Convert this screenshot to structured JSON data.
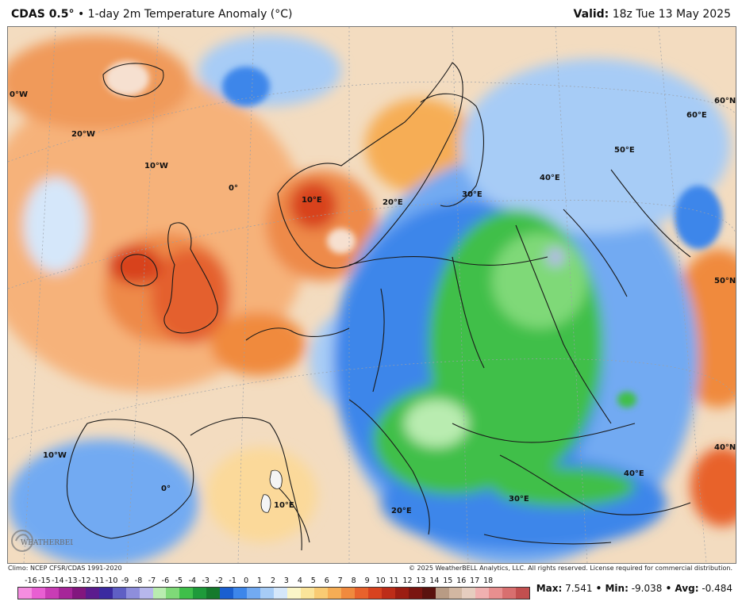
{
  "header": {
    "model": "CDAS 0.5°",
    "title": " • 1-day 2m Temperature Anomaly (°C)",
    "valid_label": "Valid:",
    "valid_value": " 18z Tue 13 May 2025"
  },
  "map": {
    "coords": [
      {
        "id": "lon-0w-top",
        "text": "0°W"
      },
      {
        "id": "lon-20w",
        "text": "20°W"
      },
      {
        "id": "lon-10w-top",
        "text": "10°W"
      },
      {
        "id": "lon-0-mid",
        "text": "0°"
      },
      {
        "id": "lon-10e-north",
        "text": "10°E"
      },
      {
        "id": "lon-20e-north",
        "text": "20°E"
      },
      {
        "id": "lon-30e-north",
        "text": "30°E"
      },
      {
        "id": "lon-40e-north",
        "text": "40°E"
      },
      {
        "id": "lon-50e",
        "text": "50°E"
      },
      {
        "id": "lat-60n-a",
        "text": "60°N"
      },
      {
        "id": "lat-60e",
        "text": "60°E"
      },
      {
        "id": "lat-50n",
        "text": "50°N"
      },
      {
        "id": "lat-40n",
        "text": "40°N"
      },
      {
        "id": "lon-40e-south",
        "text": "40°E"
      },
      {
        "id": "lon-30e-south",
        "text": "30°E"
      },
      {
        "id": "lon-20e-south",
        "text": "20°E"
      },
      {
        "id": "lon-10e-south",
        "text": "10°E"
      },
      {
        "id": "lon-0-south",
        "text": "0°"
      },
      {
        "id": "lon-10w-south",
        "text": "10°W"
      }
    ],
    "logo_text": "WEATHERBELL"
  },
  "footer": {
    "climo": "Climo: NCEP CFSR/CDAS 1991-2020",
    "copyright": "© 2025 WeatherBELL Analytics, LLC. All rights reserved. License required for commercial distribution."
  },
  "scale": {
    "ticks": [
      "-16",
      "-15",
      "-14",
      "-13",
      "-12",
      "-11",
      "-10",
      "-9",
      "-8",
      "-7",
      "-6",
      "-5",
      "-4",
      "-3",
      "-2",
      "-1",
      "0",
      "1",
      "2",
      "3",
      "4",
      "5",
      "6",
      "7",
      "8",
      "9",
      "10",
      "11",
      "12",
      "13",
      "14",
      "15",
      "16",
      "17",
      "18"
    ],
    "colors": [
      "#f58de0",
      "#e85fd2",
      "#c93cb5",
      "#a62599",
      "#82177e",
      "#5b1c8e",
      "#3b2aa0",
      "#5f5fc4",
      "#8e8edc",
      "#b7b7ec",
      "#b9ecb0",
      "#7fd978",
      "#3fbf4a",
      "#1e9a3a",
      "#157a2d",
      "#1a5fd0",
      "#3d86ea",
      "#72aaf2",
      "#a7ccf6",
      "#d5e7fa",
      "#fbf6c8",
      "#fbe49a",
      "#f9cb73",
      "#f6ad55",
      "#f08a3e",
      "#e8622c",
      "#d8431f",
      "#bd2d18",
      "#9c1d12",
      "#7a1510",
      "#5a120e",
      "#b89b84",
      "#d2b7a2",
      "#e6cdbf",
      "#f0b0b0",
      "#e88f8f",
      "#d86f6f",
      "#c24f4f"
    ],
    "max_label": "Max:",
    "max_value": " 7.541",
    "min_label": " • Min:",
    "min_value": " -9.038",
    "avg_label": " • Avg:",
    "avg_value": " -0.484"
  }
}
